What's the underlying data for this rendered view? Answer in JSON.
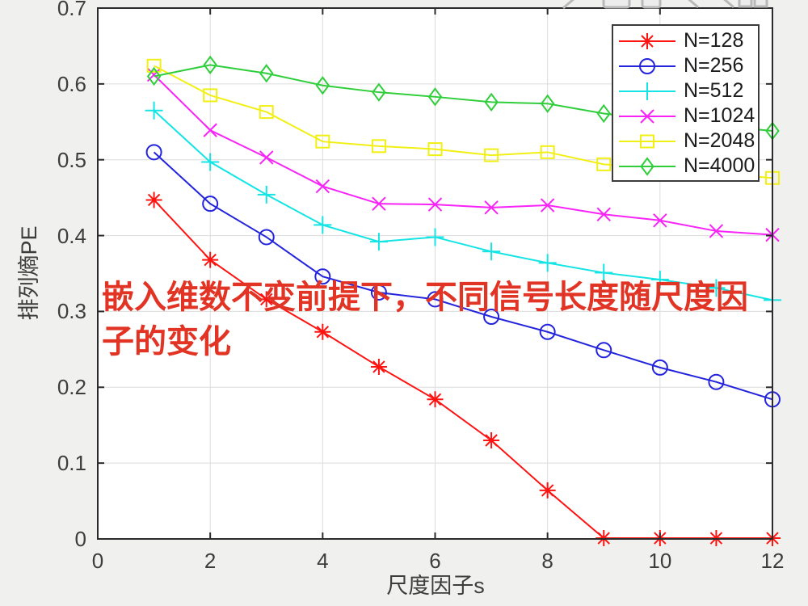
{
  "figure": {
    "outer_bg": "#f0f0ee",
    "plot_bg": "#ffffff",
    "grid_color": "#dcdcdc",
    "axis_color": "#2b2b2b",
    "tick_label_color": "#3d3d3d",
    "legend_border": "#3a3a3a",
    "legend_bg": "#ffffff"
  },
  "toolbar": {
    "icons": [
      "brush-icon",
      "save-icon",
      "copy-icon",
      "zoom-in-icon",
      "zoom-out-icon",
      "restore-view-icon"
    ]
  },
  "chart_data": {
    "type": "line",
    "x": [
      1,
      2,
      3,
      4,
      5,
      6,
      7,
      8,
      9,
      10,
      11,
      12
    ],
    "series": [
      {
        "name": "N=128",
        "color": "#fe1311",
        "marker": "asterisk",
        "values": [
          0.447,
          0.368,
          0.316,
          0.273,
          0.227,
          0.184,
          0.13,
          0.064,
          0.001,
          0.001,
          0.001,
          0.001
        ]
      },
      {
        "name": "N=256",
        "color": "#2424dd",
        "marker": "circle",
        "values": [
          0.51,
          0.442,
          0.398,
          0.346,
          0.325,
          0.316,
          0.293,
          0.273,
          0.249,
          0.226,
          0.207,
          0.184
        ]
      },
      {
        "name": "N=512",
        "color": "#14e4e4",
        "marker": "plus",
        "values": [
          0.565,
          0.497,
          0.454,
          0.414,
          0.392,
          0.398,
          0.379,
          0.364,
          0.351,
          0.342,
          0.331,
          0.315
        ]
      },
      {
        "name": "N=1024",
        "color": "#f723f7",
        "marker": "x",
        "values": [
          0.612,
          0.539,
          0.503,
          0.465,
          0.442,
          0.441,
          0.437,
          0.44,
          0.428,
          0.42,
          0.406,
          0.401
        ]
      },
      {
        "name": "N=2048",
        "color": "#f2ef14",
        "marker": "square",
        "values": [
          0.624,
          0.585,
          0.563,
          0.524,
          0.518,
          0.514,
          0.506,
          0.51,
          0.494,
          0.489,
          0.482,
          0.476
        ]
      },
      {
        "name": "N=4000",
        "color": "#2fce3a",
        "marker": "diamond",
        "values": [
          0.61,
          0.625,
          0.614,
          0.598,
          0.589,
          0.583,
          0.576,
          0.574,
          0.561,
          0.552,
          0.545,
          0.538
        ]
      }
    ],
    "xlabel": "尺度因子s",
    "ylabel": "排列熵PE",
    "xlim": [
      0,
      12
    ],
    "ylim": [
      0,
      0.7
    ],
    "xticks": [
      0,
      2,
      4,
      6,
      8,
      10,
      12
    ],
    "yticks": [
      0,
      0.1,
      0.2,
      0.3,
      0.4,
      0.5,
      0.6,
      0.7
    ],
    "xtick_labels": [
      "0",
      "2",
      "4",
      "6",
      "8",
      "10",
      "12"
    ],
    "ytick_labels": [
      "0",
      "0.1",
      "0.2",
      "0.3",
      "0.4",
      "0.5",
      "0.6",
      "0.7"
    ],
    "grid": true,
    "legend_position": "top-right",
    "annotation": {
      "text": "嵌入维数不变前提下，不同信号长度随尺度因子的变化",
      "line1": "嵌入维数不变前提下，不同信号长度随尺度因",
      "line2": "子的变化",
      "color": "#e23425"
    }
  }
}
